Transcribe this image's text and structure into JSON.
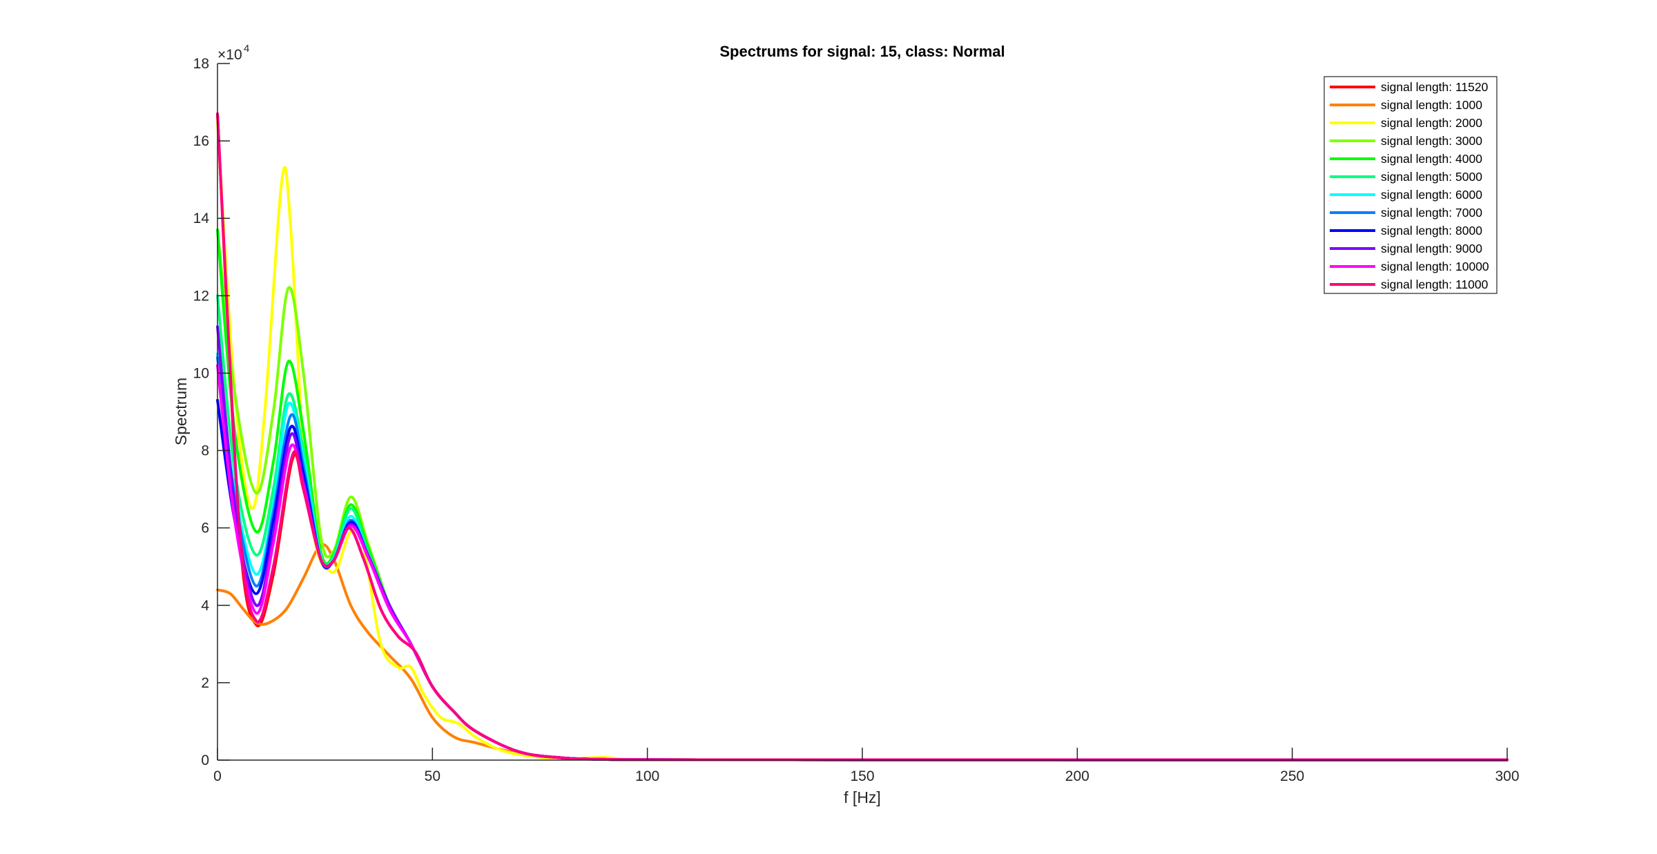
{
  "chart_data": {
    "type": "line",
    "title": "Spectrums for signal: 15, class: Normal",
    "xlabel": "f [Hz]",
    "ylabel": "Spectrum",
    "y_exponent_label": "×10",
    "y_exponent": "4",
    "xlim": [
      0,
      300
    ],
    "ylim": [
      0,
      180000
    ],
    "xticks": [
      0,
      50,
      100,
      150,
      200,
      250,
      300
    ],
    "xtick_labels": [
      "0",
      "50",
      "100",
      "150",
      "200",
      "250",
      "300"
    ],
    "yticks": [
      0,
      20000,
      40000,
      60000,
      80000,
      100000,
      120000,
      140000,
      160000,
      180000
    ],
    "ytick_labels": [
      "0",
      "2",
      "4",
      "6",
      "8",
      "10",
      "12",
      "14",
      "16",
      "18"
    ],
    "grid": false,
    "legend_position": "top-right",
    "series": [
      {
        "name": "signal length: 11520",
        "color": "#ff0000",
        "x": [
          0,
          5,
          9,
          13,
          17.5,
          20,
          24,
          27,
          30.5,
          34,
          38,
          42,
          46,
          50,
          55,
          60,
          70,
          80,
          90,
          100,
          150,
          200,
          300
        ],
        "y": [
          167000,
          60000,
          35000,
          48000,
          78000,
          70000,
          52000,
          51500,
          60000,
          52000,
          39000,
          32000,
          28000,
          19000,
          12500,
          7500,
          2200,
          600,
          200,
          100,
          80,
          60,
          60
        ]
      },
      {
        "name": "signal length: 1000",
        "color": "#ff8000",
        "x": [
          0,
          3,
          6,
          9,
          12,
          16,
          20,
          24,
          27,
          31,
          35,
          40,
          45,
          50,
          55,
          60,
          65,
          70,
          80,
          90,
          100,
          150,
          200,
          300
        ],
        "y": [
          44000,
          43000,
          39000,
          35500,
          35500,
          39000,
          47000,
          55500,
          52000,
          40000,
          33000,
          27000,
          21000,
          11000,
          6000,
          4500,
          3000,
          1800,
          500,
          200,
          100,
          80,
          60,
          60
        ]
      },
      {
        "name": "signal length: 2000",
        "color": "#ffff00",
        "x": [
          0,
          4,
          8,
          11,
          15,
          17,
          20,
          23,
          26,
          28,
          31,
          34,
          38,
          42,
          45,
          48,
          52,
          56,
          60,
          65,
          70,
          80,
          90,
          100,
          150,
          200,
          300
        ],
        "y": [
          165000,
          95000,
          65000,
          90000,
          150000,
          138000,
          80000,
          55000,
          49000,
          50000,
          59000,
          55000,
          30000,
          24000,
          24000,
          17000,
          11000,
          9500,
          6000,
          3000,
          1500,
          300,
          700,
          100,
          80,
          60,
          60
        ]
      },
      {
        "name": "signal length: 3000",
        "color": "#80ff00",
        "x": [
          0,
          4,
          9,
          13,
          16.5,
          20,
          24,
          27,
          31,
          35,
          40,
          45,
          50,
          55,
          60,
          70,
          80,
          90,
          100,
          150,
          200,
          300
        ],
        "y": [
          137000,
          95000,
          69000,
          90000,
          122000,
          100000,
          58000,
          54000,
          68000,
          56000,
          40000,
          30000,
          19000,
          12500,
          7500,
          2200,
          600,
          200,
          100,
          80,
          60,
          60
        ]
      },
      {
        "name": "signal length: 4000",
        "color": "#00ff00",
        "x": [
          0,
          4,
          9,
          13,
          16.5,
          20,
          24,
          27,
          31,
          35,
          40,
          45,
          50,
          55,
          60,
          70,
          80,
          90,
          100,
          150,
          200,
          300
        ],
        "y": [
          137000,
          85000,
          59000,
          77000,
          103000,
          85000,
          54000,
          53000,
          66000,
          55000,
          40000,
          30000,
          19000,
          12500,
          7500,
          2200,
          600,
          200,
          100,
          80,
          60,
          60
        ]
      },
      {
        "name": "signal length: 5000",
        "color": "#00ff80",
        "x": [
          0,
          4,
          9,
          13,
          16.5,
          20,
          24,
          27,
          31,
          35,
          40,
          45,
          50,
          55,
          60,
          70,
          80,
          90,
          100,
          150,
          200,
          300
        ],
        "y": [
          120000,
          75000,
          53000,
          70000,
          94500,
          80000,
          53000,
          52500,
          65000,
          54000,
          40000,
          30000,
          19000,
          12500,
          7500,
          2200,
          600,
          200,
          100,
          80,
          60,
          60
        ]
      },
      {
        "name": "signal length: 6000",
        "color": "#00ffff",
        "x": [
          0,
          4,
          9,
          13,
          16.5,
          20,
          24,
          27,
          31,
          35,
          40,
          45,
          50,
          55,
          60,
          70,
          80,
          90,
          100,
          150,
          200,
          300
        ],
        "y": [
          105000,
          70000,
          48000,
          66000,
          92000,
          78000,
          52500,
          52000,
          63000,
          53000,
          40000,
          30000,
          19000,
          12500,
          7500,
          2200,
          600,
          200,
          100,
          80,
          60,
          60
        ]
      },
      {
        "name": "signal length: 7000",
        "color": "#0080ff",
        "x": [
          0,
          4,
          9,
          13,
          17,
          20,
          24,
          27,
          31,
          35,
          40,
          45,
          50,
          55,
          60,
          70,
          80,
          90,
          100,
          150,
          200,
          300
        ],
        "y": [
          104000,
          68000,
          45000,
          64000,
          89000,
          76000,
          52000,
          51500,
          62000,
          53000,
          40000,
          30000,
          19000,
          12500,
          7500,
          2200,
          600,
          200,
          100,
          80,
          60,
          60
        ]
      },
      {
        "name": "signal length: 8000",
        "color": "#0000ff",
        "x": [
          0,
          4,
          9,
          13,
          17,
          20,
          24,
          27,
          31,
          35,
          40,
          45,
          50,
          55,
          60,
          70,
          80,
          90,
          100,
          150,
          200,
          300
        ],
        "y": [
          93000,
          62000,
          43000,
          62000,
          86000,
          74000,
          52000,
          51500,
          61500,
          53000,
          40000,
          30000,
          19000,
          12500,
          7500,
          2200,
          600,
          200,
          100,
          80,
          60,
          60
        ]
      },
      {
        "name": "signal length: 9000",
        "color": "#8000ff",
        "x": [
          0,
          4,
          9,
          13,
          17,
          20,
          24,
          27,
          31,
          35,
          40,
          45,
          50,
          55,
          60,
          70,
          80,
          90,
          100,
          150,
          200,
          300
        ],
        "y": [
          112000,
          66000,
          40000,
          58000,
          84000,
          72000,
          52000,
          51500,
          61000,
          53000,
          40000,
          30000,
          19000,
          12500,
          7500,
          2200,
          600,
          200,
          100,
          80,
          60,
          60
        ]
      },
      {
        "name": "signal length: 10000",
        "color": "#ff00ff",
        "x": [
          0,
          4,
          9,
          13,
          17,
          20,
          24,
          27,
          31,
          35,
          40,
          45,
          50,
          55,
          60,
          70,
          80,
          90,
          100,
          150,
          200,
          300
        ],
        "y": [
          102000,
          62000,
          38000,
          56000,
          81000,
          71000,
          52000,
          51500,
          60500,
          52500,
          39000,
          30000,
          19000,
          12500,
          7500,
          2200,
          600,
          200,
          100,
          80,
          60,
          60
        ]
      },
      {
        "name": "signal length: 11000",
        "color": "#ff0080",
        "x": [
          0,
          5,
          9,
          13,
          17.5,
          20,
          24,
          27,
          30.5,
          34,
          38,
          42,
          46,
          50,
          55,
          60,
          70,
          80,
          90,
          100,
          150,
          200,
          300
        ],
        "y": [
          167000,
          62000,
          36000,
          50000,
          79000,
          70000,
          52000,
          51500,
          60000,
          52000,
          39000,
          32000,
          28000,
          19000,
          12500,
          7500,
          2200,
          600,
          200,
          100,
          80,
          60,
          60
        ]
      }
    ]
  }
}
